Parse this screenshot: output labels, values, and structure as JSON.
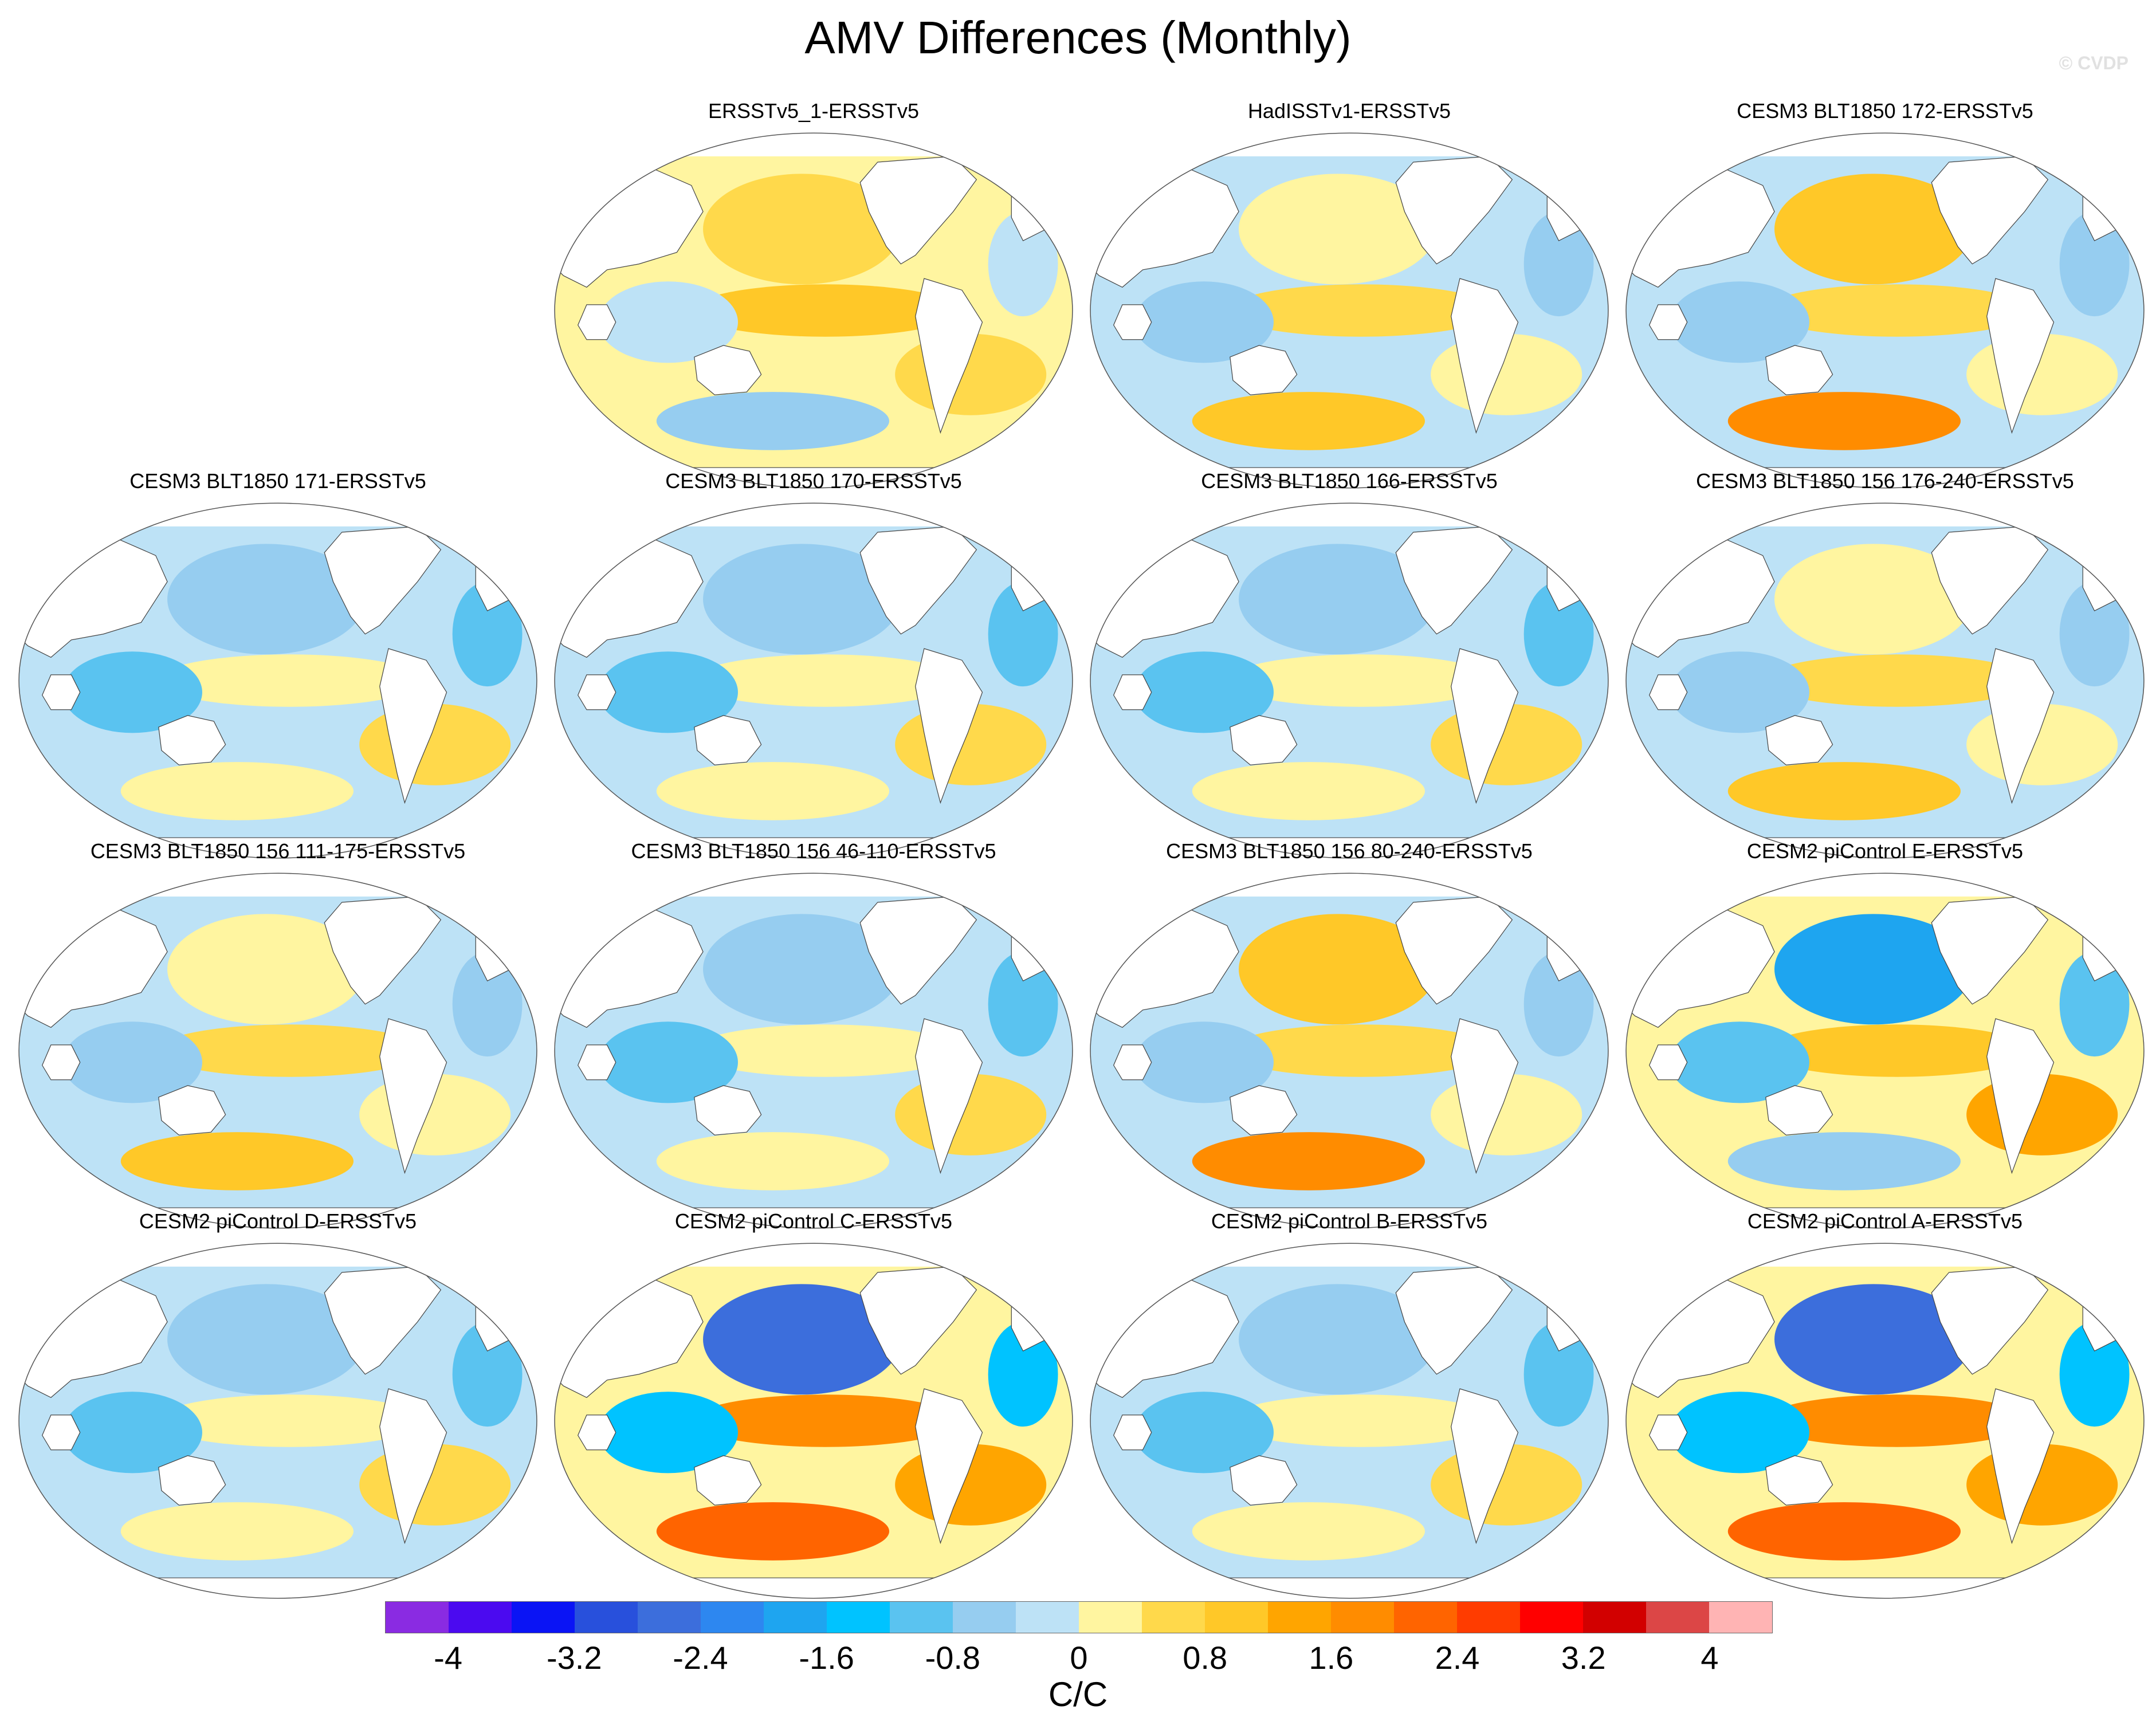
{
  "title": "AMV Differences (Monthly)",
  "credit": "© CVDP",
  "panels": [
    {
      "title": "ERSSTv5_1-ERSSTv5",
      "pattern": "warm"
    },
    {
      "title": "HadISSTv1-ERSSTv5",
      "pattern": "mixed"
    },
    {
      "title": "CESM3 BLT1850 172-ERSSTv5",
      "pattern": "warm_pacific"
    },
    {
      "title": "CESM3 BLT1850 171-ERSSTv5",
      "pattern": "cool"
    },
    {
      "title": "CESM3 BLT1850 170-ERSSTv5",
      "pattern": "cool"
    },
    {
      "title": "CESM3 BLT1850 166-ERSSTv5",
      "pattern": "cool"
    },
    {
      "title": "CESM3 BLT1850 156 176-240-ERSSTv5",
      "pattern": "mixed"
    },
    {
      "title": "CESM3 BLT1850 156 111-175-ERSSTv5",
      "pattern": "mixed"
    },
    {
      "title": "CESM3 BLT1850 156 46-110-ERSSTv5",
      "pattern": "cool"
    },
    {
      "title": "CESM3 BLT1850 156 80-240-ERSSTv5",
      "pattern": "warm_pacific"
    },
    {
      "title": "CESM2 piControl E-ERSSTv5",
      "pattern": "dipole"
    },
    {
      "title": "CESM2 piControl D-ERSSTv5",
      "pattern": "cool"
    },
    {
      "title": "CESM2 piControl C-ERSSTv5",
      "pattern": "dipole_strong"
    },
    {
      "title": "CESM2 piControl B-ERSSTv5",
      "pattern": "cool"
    },
    {
      "title": "CESM2 piControl A-ERSSTv5",
      "pattern": "dipole_strong"
    }
  ],
  "colorbar": {
    "label": "C/C",
    "colors": [
      "#8a2be2",
      "#4b0af0",
      "#0a14f5",
      "#2850dc",
      "#3c6edc",
      "#2d87f0",
      "#1ea5f0",
      "#00c3ff",
      "#5ac3f0",
      "#96cdf0",
      "#bde2f6",
      "#fff5a0",
      "#ffd94b",
      "#ffc828",
      "#ffa500",
      "#ff8c00",
      "#ff6400",
      "#ff3c00",
      "#ff0000",
      "#d20000",
      "#dc4646",
      "#ffb4b4"
    ],
    "tick_labels": [
      "-4",
      "-3.2",
      "-2.4",
      "-1.6",
      "-0.8",
      "0",
      "0.8",
      "1.6",
      "2.4",
      "3.2",
      "4"
    ]
  }
}
